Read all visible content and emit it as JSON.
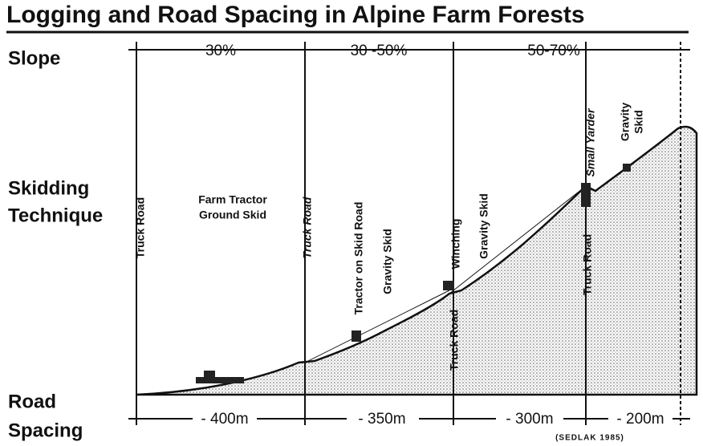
{
  "title": "Logging and Road Spacing in Alpine Farm Forests",
  "row_labels": [
    [
      "Slope"
    ],
    [
      "Skidding",
      "Technique"
    ],
    [
      "Road",
      "Spacing"
    ]
  ],
  "slopes": [
    "30%",
    "30 -50%",
    "50-70%"
  ],
  "techniques": [
    [
      "Truck Road"
    ],
    [
      "Farm Tractor",
      "Ground Skid"
    ],
    [
      "Truck Road"
    ],
    [
      "Tractor on Skid Road"
    ],
    [
      "Gravity Skid"
    ],
    [
      "Winching"
    ],
    [
      "Truck Road"
    ],
    [
      "Gravity Skid"
    ],
    [
      "Small Yarder"
    ],
    [
      "Truck Road"
    ],
    [
      "Gravity",
      "Skid"
    ]
  ],
  "spacings": [
    "- 400m",
    "- 350m",
    "- 300m",
    "- 200m"
  ],
  "credit": "(SEDLAK 1985)"
}
